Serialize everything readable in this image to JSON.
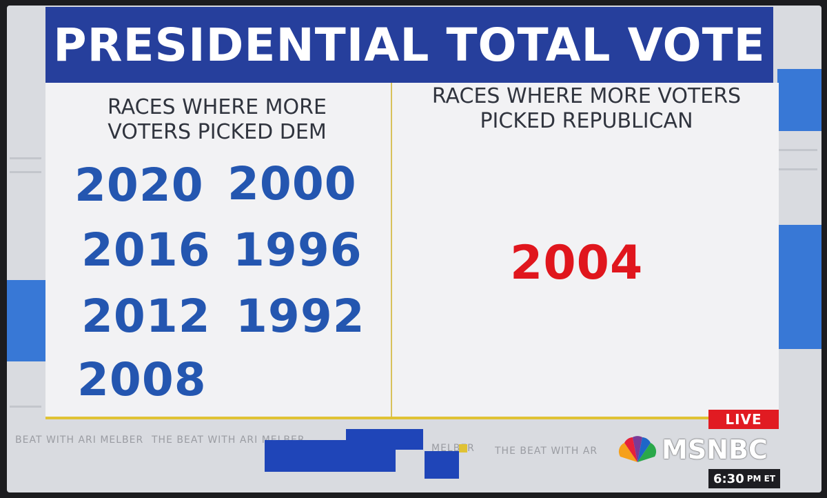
{
  "title": "PRESIDENTIAL TOTAL VOTE",
  "left_column": {
    "heading_line1": "RACES WHERE MORE",
    "heading_line2": "VOTERS PICKED DEM",
    "years": [
      "2020",
      "2000",
      "2016",
      "1996",
      "2012",
      "1992",
      "2008"
    ]
  },
  "right_column": {
    "heading_line1": "RACES WHERE MORE VOTERS",
    "heading_line2": "PICKED REPUBLICAN",
    "years": [
      "2004"
    ]
  },
  "ticker": {
    "segment1": "BEAT WITH ARI MELBER",
    "segment2": "THE BEAT WITH ARI MELBER",
    "segment3": "MELBER",
    "segment4": "THE BEAT WITH AR"
  },
  "network": {
    "live_label": "LIVE",
    "logo_text": "MSNBC",
    "time": "6:30",
    "time_suffix": "PM ET"
  },
  "colors": {
    "title_bar": "#263f9c",
    "dem_blue": "#2456b0",
    "rep_red": "#e0161d",
    "live_red": "#e11b22",
    "accent_yellow": "#e0c234"
  }
}
